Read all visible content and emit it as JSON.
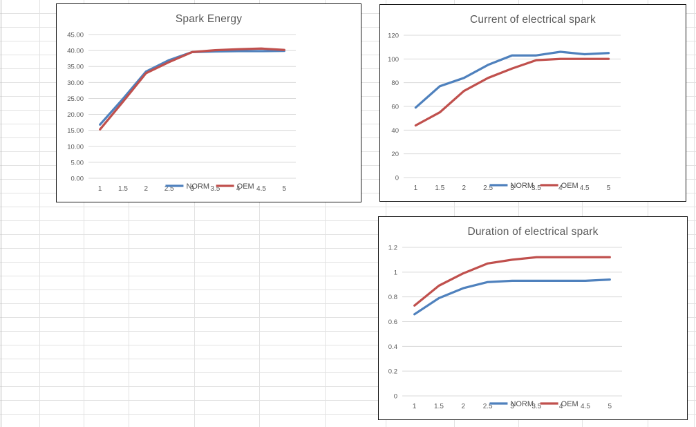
{
  "sheet": {
    "background": "#ffffff",
    "gridline_color": "#e2e2e2"
  },
  "chart_data": [
    {
      "type": "line",
      "title": "Spark Energy",
      "xlabel": "",
      "ylabel": "",
      "categories": [
        1,
        1.5,
        2,
        2.5,
        3,
        3.5,
        4,
        4.5,
        5
      ],
      "x_tick_labels": [
        "1",
        "1.5",
        "2",
        "2.5",
        "3",
        "3.5",
        "4",
        "4.5",
        "5"
      ],
      "y_tick_labels": [
        "0.00",
        "5.00",
        "10.00",
        "15.00",
        "20.00",
        "25.00",
        "30.00",
        "35.00",
        "40.00",
        "45.00"
      ],
      "ylim": [
        0,
        45
      ],
      "y_step": 5,
      "grid": true,
      "legend_position": "bottom",
      "series": [
        {
          "name": "NORM",
          "color": "#4F81BD",
          "values": [
            16.8,
            24.9,
            33.4,
            37.0,
            39.5,
            39.7,
            39.8,
            39.8,
            39.9
          ]
        },
        {
          "name": "OEM",
          "color": "#C0504D",
          "values": [
            15.3,
            24.0,
            32.9,
            36.4,
            39.5,
            40.1,
            40.4,
            40.6,
            40.2
          ]
        }
      ]
    },
    {
      "type": "line",
      "title": "Current of electrical spark",
      "xlabel": "",
      "ylabel": "",
      "categories": [
        1,
        1.5,
        2,
        2.5,
        3,
        3.5,
        4,
        4.5,
        5
      ],
      "x_tick_labels": [
        "1",
        "1.5",
        "2",
        "2.5",
        "3",
        "3.5",
        "4",
        "4.5",
        "5"
      ],
      "y_tick_labels": [
        "0",
        "20",
        "40",
        "60",
        "80",
        "100",
        "120"
      ],
      "ylim": [
        0,
        120
      ],
      "y_step": 20,
      "grid": true,
      "legend_position": "bottom",
      "series": [
        {
          "name": "NORM",
          "color": "#4F81BD",
          "values": [
            59,
            77,
            84,
            95,
            103,
            103,
            106,
            104,
            105
          ]
        },
        {
          "name": "OEM",
          "color": "#C0504D",
          "values": [
            44,
            55,
            73,
            84,
            92,
            99,
            100,
            100,
            100
          ]
        }
      ]
    },
    {
      "type": "line",
      "title": "Duration of electrical spark",
      "xlabel": "",
      "ylabel": "",
      "categories": [
        1,
        1.5,
        2,
        2.5,
        3,
        3.5,
        4,
        4.5,
        5
      ],
      "x_tick_labels": [
        "1",
        "1.5",
        "2",
        "2.5",
        "3",
        "3.5",
        "4",
        "4.5",
        "5"
      ],
      "y_tick_labels": [
        "0",
        "0.2",
        "0.4",
        "0.6",
        "0.8",
        "1",
        "1.2"
      ],
      "ylim": [
        0,
        1.2
      ],
      "y_step": 0.2,
      "grid": true,
      "legend_position": "bottom",
      "series": [
        {
          "name": "NORM",
          "color": "#4F81BD",
          "values": [
            0.66,
            0.79,
            0.87,
            0.92,
            0.93,
            0.93,
            0.93,
            0.93,
            0.94
          ]
        },
        {
          "name": "OEM",
          "color": "#C0504D",
          "values": [
            0.73,
            0.89,
            0.99,
            1.07,
            1.1,
            1.12,
            1.12,
            1.12,
            1.12
          ]
        }
      ]
    }
  ]
}
